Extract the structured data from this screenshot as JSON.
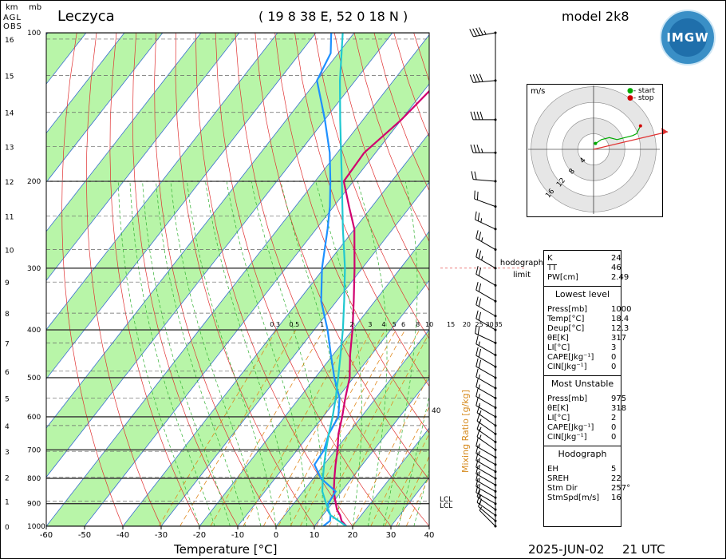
{
  "header": {
    "station": "Leczyca",
    "coordinates": "( 19 8 38 E, 52 0 18 N )",
    "model": "model 2k8",
    "logo_text": "IMGW"
  },
  "footer": {
    "date": "2025-JUN-02",
    "time": "21 UTC",
    "xaxis_label": "Temperature [°C]"
  },
  "axis_corner": {
    "km_label": "km",
    "mb_label": "mb",
    "agl_label": "AGL",
    "obs_label": "OBS"
  },
  "chart_data": {
    "type": "line",
    "title": "Leczyca",
    "xlabel": "Temperature [°C]",
    "ylabel": "",
    "xlim": [
      -60,
      40
    ],
    "x_ticks": [
      "-60",
      "-50",
      "-40",
      "-30",
      "-20",
      "-10",
      "0",
      "10",
      "20",
      "30",
      "40"
    ],
    "pressure_ticks": [
      "100",
      "200",
      "300",
      "400",
      "500",
      "600",
      "700",
      "800",
      "900",
      "1000"
    ],
    "height_ticks_km": [
      "0",
      "1",
      "2",
      "3",
      "4",
      "5",
      "6",
      "7",
      "8",
      "9",
      "10",
      "11",
      "12",
      "13",
      "14",
      "15",
      "16"
    ],
    "mixing_ratio_labels": [
      "0.3",
      "0.5",
      "1",
      "2",
      "3",
      "4",
      "5",
      "6",
      "8",
      "10",
      "15",
      "20",
      "25",
      "30",
      "35"
    ],
    "mixing_ratio_axis_label": "Mixing Ratio [g/kg]",
    "mixing_ratio_extra_label": "40",
    "lcl_labels": [
      "LCL",
      "LCL"
    ],
    "hodograph_limit_label": "hodograph limit",
    "series": [
      {
        "name": "",
        "color": "#d0006f",
        "points": [
          [
            1000,
            18.4
          ],
          [
            975,
            16
          ],
          [
            950,
            14.5
          ],
          [
            925,
            12.5
          ],
          [
            900,
            11
          ],
          [
            850,
            8
          ],
          [
            800,
            5.5
          ],
          [
            750,
            3
          ],
          [
            700,
            0.5
          ],
          [
            650,
            -2.5
          ],
          [
            600,
            -5
          ],
          [
            550,
            -8
          ],
          [
            500,
            -11
          ],
          [
            450,
            -15.5
          ],
          [
            400,
            -20
          ],
          [
            350,
            -25.5
          ],
          [
            300,
            -32
          ],
          [
            250,
            -40
          ],
          [
            225,
            -46
          ],
          [
            200,
            -52.5
          ],
          [
            175,
            -53
          ],
          [
            150,
            -50
          ],
          [
            125,
            -48
          ],
          [
            110,
            -47
          ],
          [
            100,
            -46.5
          ]
        ]
      },
      {
        "name": "",
        "color": "#1e90ff",
        "points": [
          [
            1000,
            12.3
          ],
          [
            975,
            13
          ],
          [
            950,
            12
          ],
          [
            925,
            10
          ],
          [
            900,
            9
          ],
          [
            850,
            8.5
          ],
          [
            800,
            2
          ],
          [
            750,
            -2.5
          ],
          [
            700,
            -3
          ],
          [
            650,
            -5
          ],
          [
            600,
            -6
          ],
          [
            550,
            -9.5
          ],
          [
            500,
            -15
          ],
          [
            450,
            -20.5
          ],
          [
            400,
            -26.5
          ],
          [
            350,
            -34
          ],
          [
            300,
            -40.5
          ],
          [
            250,
            -47
          ],
          [
            225,
            -51
          ],
          [
            200,
            -56
          ],
          [
            175,
            -62
          ],
          [
            150,
            -70
          ],
          [
            125,
            -80
          ],
          [
            110,
            -82
          ],
          [
            100,
            -86
          ]
        ]
      },
      {
        "name": "",
        "color": "#20c8d0",
        "points": [
          [
            1000,
            18.4
          ],
          [
            950,
            12
          ],
          [
            900,
            8.5
          ],
          [
            850,
            5
          ],
          [
            800,
            2.5
          ],
          [
            750,
            0
          ],
          [
            700,
            -2.5
          ],
          [
            650,
            -5
          ],
          [
            600,
            -7.5
          ],
          [
            550,
            -10.5
          ],
          [
            500,
            -14
          ],
          [
            450,
            -18
          ],
          [
            400,
            -22.5
          ],
          [
            350,
            -28
          ],
          [
            300,
            -34.5
          ],
          [
            250,
            -43
          ],
          [
            200,
            -53
          ],
          [
            150,
            -66
          ],
          [
            125,
            -74
          ],
          [
            100,
            -83
          ]
        ]
      }
    ],
    "hodograph": {
      "unit": "m/s",
      "ring_labels": [
        "4",
        "8",
        "12",
        "16"
      ],
      "legend": [
        "- start",
        "- stop"
      ],
      "legend_colors": [
        "#00aa00",
        "#d00000"
      ],
      "track_uv": [
        [
          0.5,
          1.5
        ],
        [
          2,
          2.5
        ],
        [
          4,
          3
        ],
        [
          6,
          2.5
        ],
        [
          8,
          3
        ],
        [
          10,
          3.5
        ],
        [
          11,
          4
        ],
        [
          12,
          6
        ]
      ],
      "storm_vector_uv": [
        [
          0,
          0
        ],
        [
          19,
          4.5
        ]
      ]
    },
    "wind_barbs": [
      {
        "p": 100,
        "dir": 260,
        "spd": 45
      },
      {
        "p": 125,
        "dir": 265,
        "spd": 40
      },
      {
        "p": 150,
        "dir": 270,
        "spd": 40
      },
      {
        "p": 175,
        "dir": 270,
        "spd": 35
      },
      {
        "p": 200,
        "dir": 275,
        "spd": 20
      },
      {
        "p": 225,
        "dir": 290,
        "spd": 20
      },
      {
        "p": 250,
        "dir": 295,
        "spd": 25
      },
      {
        "p": 275,
        "dir": 300,
        "spd": 25
      },
      {
        "p": 300,
        "dir": 300,
        "spd": 25
      },
      {
        "p": 325,
        "dir": 300,
        "spd": 20
      },
      {
        "p": 350,
        "dir": 300,
        "spd": 20
      },
      {
        "p": 375,
        "dir": 300,
        "spd": 20
      },
      {
        "p": 400,
        "dir": 300,
        "spd": 20
      },
      {
        "p": 425,
        "dir": 295,
        "spd": 20
      },
      {
        "p": 450,
        "dir": 300,
        "spd": 15
      },
      {
        "p": 475,
        "dir": 300,
        "spd": 20
      },
      {
        "p": 500,
        "dir": 300,
        "spd": 20
      },
      {
        "p": 525,
        "dir": 300,
        "spd": 15
      },
      {
        "p": 550,
        "dir": 300,
        "spd": 15
      },
      {
        "p": 575,
        "dir": 300,
        "spd": 15
      },
      {
        "p": 600,
        "dir": 300,
        "spd": 15
      },
      {
        "p": 625,
        "dir": 305,
        "spd": 15
      },
      {
        "p": 650,
        "dir": 305,
        "spd": 15
      },
      {
        "p": 675,
        "dir": 305,
        "spd": 15
      },
      {
        "p": 700,
        "dir": 305,
        "spd": 15
      },
      {
        "p": 725,
        "dir": 300,
        "spd": 15
      },
      {
        "p": 750,
        "dir": 300,
        "spd": 15
      },
      {
        "p": 775,
        "dir": 300,
        "spd": 15
      },
      {
        "p": 800,
        "dir": 300,
        "spd": 15
      },
      {
        "p": 825,
        "dir": 300,
        "spd": 15
      },
      {
        "p": 850,
        "dir": 300,
        "spd": 15
      },
      {
        "p": 875,
        "dir": 300,
        "spd": 15
      },
      {
        "p": 900,
        "dir": 300,
        "spd": 15
      },
      {
        "p": 925,
        "dir": 305,
        "spd": 15
      },
      {
        "p": 950,
        "dir": 305,
        "spd": 15
      },
      {
        "p": 975,
        "dir": 310,
        "spd": 10
      },
      {
        "p": 1000,
        "dir": 315,
        "spd": 5
      }
    ]
  },
  "indices": {
    "top": [
      {
        "k": "K",
        "v": "24"
      },
      {
        "k": "TT",
        "v": "46"
      },
      {
        "k": "PW[cm]",
        "v": "2.49"
      }
    ],
    "lowest_level": {
      "title": "Lowest level",
      "rows": [
        {
          "k": "Press[mb]",
          "v": "1000"
        },
        {
          "k": "Temp[°C]",
          "v": "18.4"
        },
        {
          "k": "Deup[°C]",
          "v": "12.3"
        },
        {
          "k": "θE[K]",
          "v": "317"
        },
        {
          "k": "LI[°C]",
          "v": "3"
        },
        {
          "k": "CAPE[Jkg⁻¹]",
          "v": "0"
        },
        {
          "k": "CIN[Jkg⁻¹]",
          "v": "0"
        }
      ]
    },
    "most_unstable": {
      "title": "Most Unstable",
      "rows": [
        {
          "k": "Press[mb]",
          "v": "975"
        },
        {
          "k": "θE[K]",
          "v": "318"
        },
        {
          "k": "LI[°C]",
          "v": "2"
        },
        {
          "k": "CAPE[Jkg⁻¹]",
          "v": "0"
        },
        {
          "k": "CIN[Jkg⁻¹]",
          "v": "0"
        }
      ]
    },
    "hodograph": {
      "title": "Hodograph",
      "rows": [
        {
          "k": "EH",
          "v": "5"
        },
        {
          "k": "SREH",
          "v": "22"
        },
        {
          "k": "Stm Dir",
          "v": "257°"
        },
        {
          "k": "StmSpd[m/s]",
          "v": "16"
        }
      ]
    }
  }
}
